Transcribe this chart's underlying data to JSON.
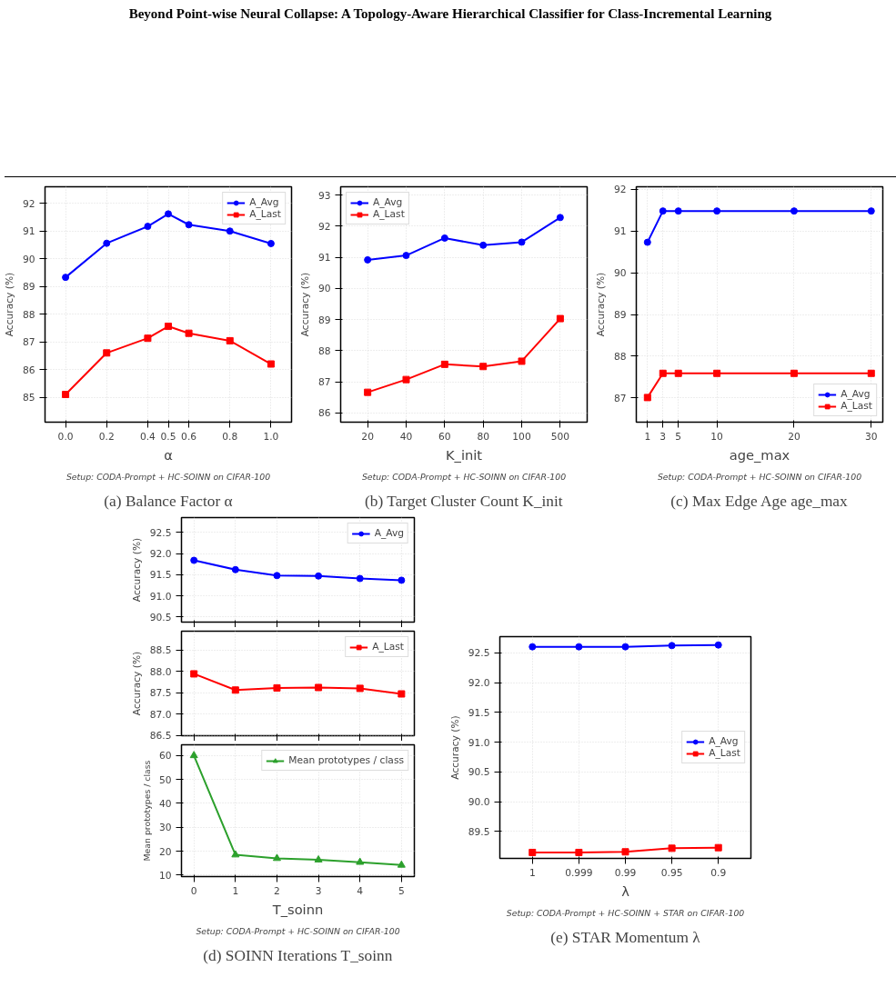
{
  "chart_data": [
    {
      "type": "line",
      "title": "Beyond Point-wise Neural Collapse: A Topology-Aware Hierarchical Classifier for Class-Incremental Learning",
      "x": [
        0.0,
        0.2,
        0.4,
        0.5,
        0.6,
        0.8,
        1.0
      ],
      "xlim": [
        -0.1,
        1.1
      ],
      "xticks": [
        {
          "value": 0,
          "label": "0.0"
        },
        0.2,
        0.4,
        0.5,
        0.6,
        0.8,
        {
          "value": 1,
          "label": "1.0"
        }
      ],
      "ylim": [
        84.1,
        92.6
      ],
      "yticks": [
        85,
        86,
        87,
        88,
        89,
        90,
        91,
        92
      ],
      "xlabel": "α",
      "ylabel": "Accuracy (%)",
      "grid": true,
      "legend": "top right",
      "series": [
        {
          "name": "A_Avg",
          "color": "#0000ff",
          "marker": "circle",
          "values": [
            89.33,
            90.56,
            91.17,
            91.62,
            91.23,
            91.0,
            90.55
          ]
        },
        {
          "name": "A_Last",
          "color": "#ff0000",
          "marker": "square",
          "values": [
            85.1,
            86.6,
            87.13,
            87.56,
            87.31,
            87.04,
            86.2
          ]
        }
      ],
      "annotations": [
        "Setup: CODA-Prompt + HC-SOINN on CIFAR-100",
        "(a) Balance Factor α"
      ]
    },
    {
      "type": "line",
      "categories": [
        "20",
        "40",
        "60",
        "80",
        "100",
        "500"
      ],
      "ylim": [
        85.7,
        93.27
      ],
      "yticks": [
        86,
        87,
        88,
        89,
        90,
        91,
        92,
        93
      ],
      "xlabel": "K_init",
      "ylabel": "Accuracy (%)",
      "grid": true,
      "legend": "top left",
      "series": [
        {
          "name": "A_Avg",
          "color": "#0000ff",
          "marker": "circle",
          "values": [
            90.92,
            91.06,
            91.62,
            91.39,
            91.49,
            92.28
          ]
        },
        {
          "name": "A_Last",
          "color": "#ff0000",
          "marker": "square",
          "values": [
            86.66,
            87.07,
            87.56,
            87.49,
            87.66,
            89.03
          ]
        }
      ],
      "annotations": [
        "Setup: CODA-Prompt + HC-SOINN on CIFAR-100",
        "(b) Target Cluster Count K_init"
      ]
    },
    {
      "type": "line",
      "x": [
        1,
        3,
        5,
        10,
        20,
        30
      ],
      "xlim": [
        -0.45,
        31.5
      ],
      "xticks": [
        1,
        3,
        5,
        10,
        20,
        30
      ],
      "ylim": [
        86.42,
        92.06
      ],
      "yticks": [
        87,
        88,
        89,
        90,
        91,
        92
      ],
      "xlabel": "age_max",
      "ylabel": "Accuracy (%)",
      "grid": true,
      "legend": "bottom right",
      "series": [
        {
          "name": "A_Avg",
          "color": "#0000ff",
          "marker": "circle",
          "values": [
            90.73,
            91.48,
            91.48,
            91.48,
            91.48,
            91.48
          ]
        },
        {
          "name": "A_Last",
          "color": "#ff0000",
          "marker": "square",
          "values": [
            87.01,
            87.59,
            87.59,
            87.59,
            87.59,
            87.59
          ]
        }
      ],
      "annotations": [
        "Setup: CODA-Prompt + HC-SOINN on CIFAR-100",
        "(c) Max Edge Age age_max"
      ]
    },
    {
      "type": "line",
      "x": [
        0,
        1,
        2,
        3,
        4,
        5
      ],
      "xlim": [
        -0.3,
        5.31
      ],
      "xticks": [
        0,
        1,
        2,
        3,
        4,
        5
      ],
      "ylim": [
        90.38,
        92.85
      ],
      "yticks": [
        {
          "value": 90.5,
          "label": "90.5"
        },
        {
          "value": 91,
          "label": "91.0"
        },
        {
          "value": 91.5,
          "label": "91.5"
        },
        {
          "value": 92,
          "label": "92.0"
        },
        {
          "value": 92.5,
          "label": "92.5"
        }
      ],
      "ylabel": "Accuracy (%)",
      "grid": true,
      "legend": "top right",
      "tick_labels": "y",
      "series": [
        {
          "name": "A_Avg",
          "color": "#0000ff",
          "marker": "circle",
          "values": [
            91.84,
            91.62,
            91.48,
            91.47,
            91.41,
            91.37
          ]
        }
      ]
    },
    {
      "type": "line",
      "x": [
        0,
        1,
        2,
        3,
        4,
        5
      ],
      "xlim": [
        -0.3,
        5.31
      ],
      "xticks": [
        0,
        1,
        2,
        3,
        4,
        5
      ],
      "ylim": [
        86.49,
        88.94
      ],
      "yticks": [
        {
          "value": 86.5,
          "label": "86.5"
        },
        {
          "value": 87,
          "label": "87.0"
        },
        {
          "value": 87.5,
          "label": "87.5"
        },
        {
          "value": 88,
          "label": "88.0"
        },
        {
          "value": 88.5,
          "label": "88.5"
        }
      ],
      "ylabel": "Accuracy (%)",
      "grid": true,
      "legend": "top right",
      "tick_labels": "y",
      "series": [
        {
          "name": "A_Last",
          "color": "#ff0000",
          "marker": "square",
          "values": [
            87.94,
            87.56,
            87.61,
            87.62,
            87.6,
            87.47
          ]
        }
      ]
    },
    {
      "type": "line",
      "x": [
        0,
        1,
        2,
        3,
        4,
        5
      ],
      "xlim": [
        -0.3,
        5.31
      ],
      "xticks": [
        0,
        1,
        2,
        3,
        4,
        5
      ],
      "ylim": [
        9.4,
        64.5
      ],
      "yticks": [
        10,
        20,
        30,
        40,
        50,
        60
      ],
      "xlabel": "T_soinn",
      "ylabel": "Mean prototypes / class",
      "grid": true,
      "legend": "top right",
      "series": [
        {
          "name": "Mean prototypes / class",
          "color": "#2ca02c",
          "marker": "triangle",
          "values": [
            60,
            18.5,
            17,
            16.4,
            15.4,
            14.2
          ]
        }
      ],
      "annotations": [
        "Setup: CODA-Prompt + HC-SOINN on CIFAR-100",
        "(d) SOINN Iterations T_soinn"
      ]
    },
    {
      "type": "line",
      "categories": [
        "1",
        "0.999",
        "0.99",
        "0.95",
        "0.9"
      ],
      "ylim": [
        89.05,
        92.77
      ],
      "yticks": [
        {
          "value": 89.5,
          "label": "89.5"
        },
        {
          "value": 90,
          "label": "90.0"
        },
        {
          "value": 90.5,
          "label": "90.5"
        },
        {
          "value": 91,
          "label": "91.0"
        },
        {
          "value": 91.5,
          "label": "91.5"
        },
        {
          "value": 92,
          "label": "92.0"
        },
        {
          "value": 92.5,
          "label": "92.5"
        }
      ],
      "xlabel": "λ",
      "ylabel": "Accuracy (%)",
      "grid": true,
      "legend": "right",
      "series": [
        {
          "name": "A_Avg",
          "color": "#0000ff",
          "marker": "circle",
          "values": [
            92.6,
            92.6,
            92.6,
            92.62,
            92.63
          ]
        },
        {
          "name": "A_Last",
          "color": "#ff0000",
          "marker": "square",
          "values": [
            89.15,
            89.15,
            89.16,
            89.22,
            89.23
          ]
        }
      ],
      "annotations": [
        "Setup: CODA-Prompt + HC-SOINN + STAR on CIFAR-100",
        "(e) STAR Momentum λ"
      ]
    }
  ]
}
